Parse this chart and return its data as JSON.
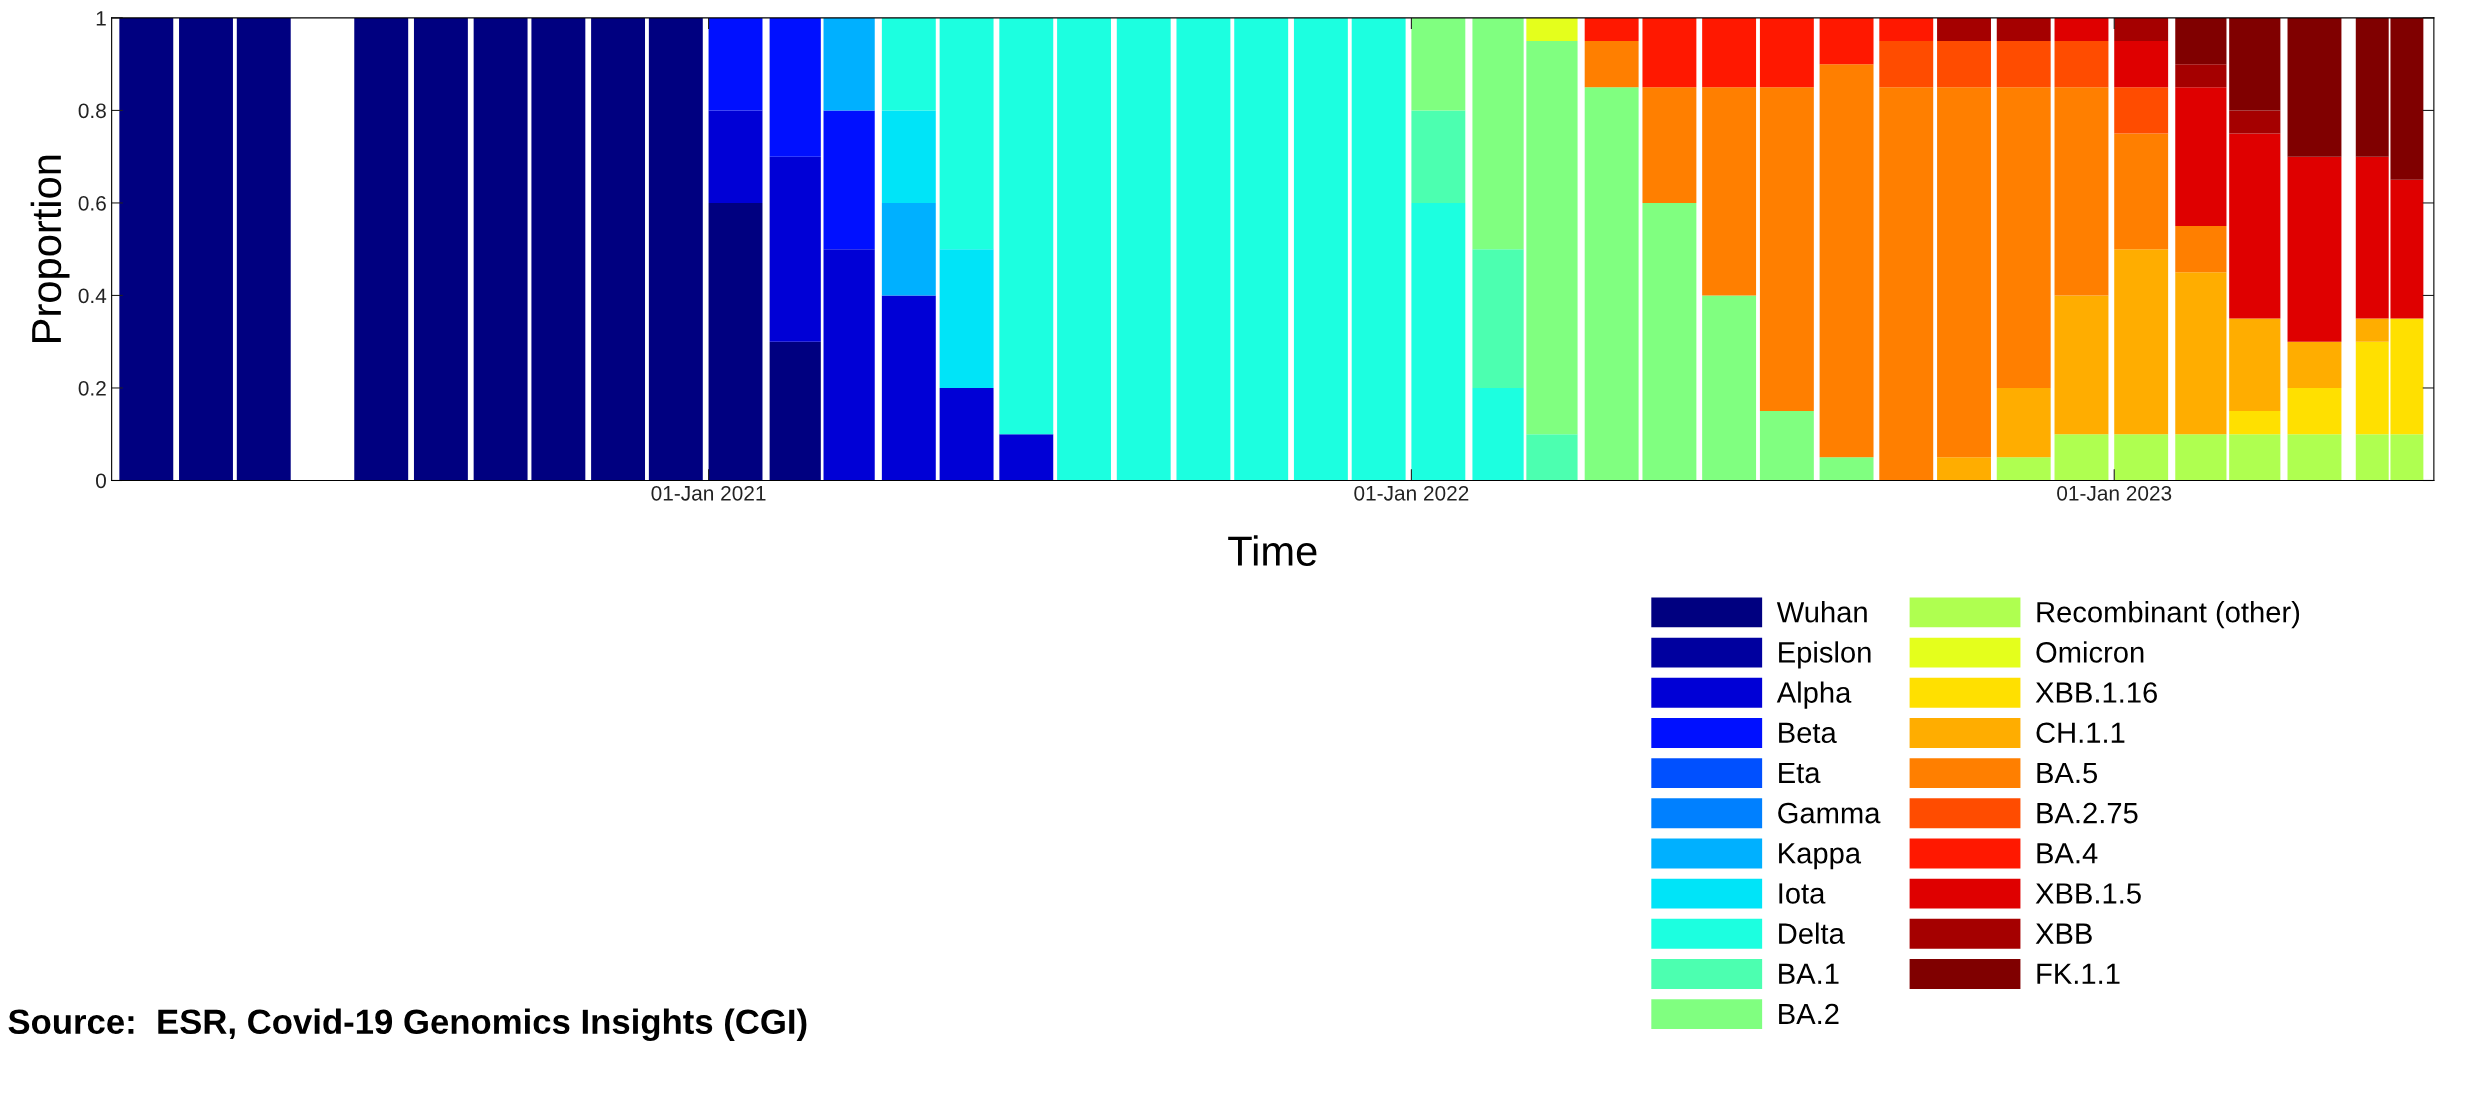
{
  "chart_data": {
    "type": "bar",
    "stacked": true,
    "xlabel": "Time",
    "ylabel": "Proportion",
    "x": [
      "2020-03-15",
      "2020-04-15",
      "2020-05-15",
      "2020-06-15",
      "2020-07-15",
      "2020-08-15",
      "2020-09-15",
      "2020-10-15",
      "2020-11-15",
      "2020-12-15",
      "2021-01-15",
      "2021-02-15",
      "2021-03-15",
      "2021-04-15",
      "2021-05-15",
      "2021-06-15",
      "2021-07-15",
      "2021-08-15",
      "2021-09-15",
      "2021-10-15",
      "2021-11-15",
      "2021-12-15",
      "2022-01-15",
      "2022-02-15",
      "2022-03-15",
      "2022-04-15",
      "2022-05-15",
      "2022-06-15",
      "2022-07-15",
      "2022-08-15",
      "2022-09-15",
      "2022-10-15",
      "2022-11-15",
      "2022-12-15",
      "2023-01-15",
      "2023-02-15",
      "2023-03-15",
      "2023-04-15",
      "2023-05-15",
      "2023-06-02"
    ],
    "xlim": [
      "2020-02-26",
      "2023-06-16"
    ],
    "xticks": [
      {
        "value": "2021-01-01",
        "label": "01-Jan 2021"
      },
      {
        "value": "2022-01-01",
        "label": "01-Jan 2022"
      },
      {
        "value": "2023-01-01",
        "label": "01-Jan 2023"
      }
    ],
    "ylim": [
      0,
      1
    ],
    "yticks": [
      0,
      0.2,
      0.4,
      0.6,
      0.8,
      1
    ],
    "grid": false,
    "legend": "bottom right",
    "series": [
      {
        "name": "Wuhan",
        "color": "#000080",
        "values": [
          1,
          1,
          1,
          null,
          1,
          1,
          1,
          1,
          1,
          1,
          0.6,
          0.3,
          0,
          0,
          0,
          0,
          0,
          0,
          0,
          0,
          0,
          0,
          0,
          0,
          0,
          0,
          0,
          0,
          0,
          0,
          0,
          0,
          0,
          0,
          0,
          0,
          0,
          0,
          0,
          0
        ]
      },
      {
        "name": "Epislon",
        "color": "#00009f",
        "values": [
          0,
          0,
          0,
          null,
          0,
          0,
          0,
          0,
          0,
          0,
          0,
          0,
          0,
          0,
          0,
          0,
          0,
          0,
          0,
          0,
          0,
          0,
          0,
          0,
          0,
          0,
          0,
          0,
          0,
          0,
          0,
          0,
          0,
          0,
          0,
          0,
          0,
          0,
          0,
          0
        ]
      },
      {
        "name": "Alpha",
        "color": "#0000d6",
        "values": [
          0,
          0,
          0,
          null,
          0,
          0,
          0,
          0,
          0,
          0,
          0.2,
          0.4,
          0.5,
          0.4,
          0.2,
          0.1,
          0,
          0,
          0,
          0,
          0,
          0,
          0,
          0,
          0,
          0,
          0,
          0,
          0,
          0,
          0,
          0,
          0,
          0,
          0,
          0,
          0,
          0,
          0,
          0
        ]
      },
      {
        "name": "Beta",
        "color": "#0010ff",
        "values": [
          0,
          0,
          0,
          null,
          0,
          0,
          0,
          0,
          0,
          0,
          0.2,
          0.3,
          0.3,
          0,
          0,
          0,
          0,
          0,
          0,
          0,
          0,
          0,
          0,
          0,
          0,
          0,
          0,
          0,
          0,
          0,
          0,
          0,
          0,
          0,
          0,
          0,
          0,
          0,
          0,
          0
        ]
      },
      {
        "name": "Eta",
        "color": "#0050ff",
        "values": [
          0,
          0,
          0,
          null,
          0,
          0,
          0,
          0,
          0,
          0,
          0,
          0,
          0,
          0,
          0,
          0,
          0,
          0,
          0,
          0,
          0,
          0,
          0,
          0,
          0,
          0,
          0,
          0,
          0,
          0,
          0,
          0,
          0,
          0,
          0,
          0,
          0,
          0,
          0,
          0
        ]
      },
      {
        "name": "Gamma",
        "color": "#0080ff",
        "values": [
          0,
          0,
          0,
          null,
          0,
          0,
          0,
          0,
          0,
          0,
          0,
          0,
          0,
          0,
          0,
          0,
          0,
          0,
          0,
          0,
          0,
          0,
          0,
          0,
          0,
          0,
          0,
          0,
          0,
          0,
          0,
          0,
          0,
          0,
          0,
          0,
          0,
          0,
          0,
          0
        ]
      },
      {
        "name": "Kappa",
        "color": "#00b0ff",
        "values": [
          0,
          0,
          0,
          null,
          0,
          0,
          0,
          0,
          0,
          0,
          0,
          0,
          0.2,
          0.2,
          0,
          0,
          0,
          0,
          0,
          0,
          0,
          0,
          0,
          0,
          0,
          0,
          0,
          0,
          0,
          0,
          0,
          0,
          0,
          0,
          0,
          0,
          0,
          0,
          0,
          0
        ]
      },
      {
        "name": "Iota",
        "color": "#00e4f8",
        "values": [
          0,
          0,
          0,
          null,
          0,
          0,
          0,
          0,
          0,
          0,
          0,
          0,
          0,
          0.2,
          0.3,
          0,
          0,
          0,
          0,
          0,
          0,
          0,
          0,
          0,
          0,
          0,
          0,
          0,
          0,
          0,
          0,
          0,
          0,
          0,
          0,
          0,
          0,
          0,
          0,
          0
        ]
      },
      {
        "name": "Delta",
        "color": "#1cffe0",
        "values": [
          0,
          0,
          0,
          null,
          0,
          0,
          0,
          0,
          0,
          0,
          0,
          0,
          0,
          0.2,
          0.5,
          0.9,
          1,
          1,
          1,
          1,
          1,
          1,
          0.6,
          0.2,
          0,
          0,
          0,
          0,
          0,
          0,
          0,
          0,
          0,
          0,
          0,
          0,
          0,
          0,
          0,
          0
        ]
      },
      {
        "name": "BA.1",
        "color": "#4cffb0",
        "values": [
          0,
          0,
          0,
          null,
          0,
          0,
          0,
          0,
          0,
          0,
          0,
          0,
          0,
          0,
          0,
          0,
          0,
          0,
          0,
          0,
          0,
          0,
          0.2,
          0.3,
          0.1,
          0,
          0,
          0,
          0,
          0,
          0,
          0,
          0,
          0,
          0,
          0,
          0,
          0,
          0,
          0
        ]
      },
      {
        "name": "BA.2",
        "color": "#80ff80",
        "values": [
          0,
          0,
          0,
          null,
          0,
          0,
          0,
          0,
          0,
          0,
          0,
          0,
          0,
          0,
          0,
          0,
          0,
          0,
          0,
          0,
          0,
          0,
          0.2,
          0.5,
          0.85,
          0.85,
          0.6,
          0.4,
          0.15,
          0.05,
          0,
          0,
          0,
          0,
          0,
          0,
          0,
          0,
          0,
          0
        ]
      },
      {
        "name": "Recombinant (other)",
        "color": "#afff50",
        "values": [
          0,
          0,
          0,
          null,
          0,
          0,
          0,
          0,
          0,
          0,
          0,
          0,
          0,
          0,
          0,
          0,
          0,
          0,
          0,
          0,
          0,
          0,
          0,
          0,
          0,
          0,
          0,
          0,
          0,
          0,
          0,
          0,
          0.05,
          0.1,
          0.1,
          0.1,
          0.1,
          0.1,
          0.1,
          0.1
        ]
      },
      {
        "name": "Omicron",
        "color": "#e4ff1c",
        "values": [
          0,
          0,
          0,
          null,
          0,
          0,
          0,
          0,
          0,
          0,
          0,
          0,
          0,
          0,
          0,
          0,
          0,
          0,
          0,
          0,
          0,
          0,
          0,
          0,
          0.05,
          0,
          0,
          0,
          0,
          0,
          0,
          0,
          0,
          0,
          0,
          0,
          0,
          0,
          0,
          0
        ]
      },
      {
        "name": "XBB.1.16",
        "color": "#ffe000",
        "values": [
          0,
          0,
          0,
          null,
          0,
          0,
          0,
          0,
          0,
          0,
          0,
          0,
          0,
          0,
          0,
          0,
          0,
          0,
          0,
          0,
          0,
          0,
          0,
          0,
          0,
          0,
          0,
          0,
          0,
          0,
          0,
          0,
          0,
          0,
          0,
          0,
          0.05,
          0.1,
          0.2,
          0.25
        ]
      },
      {
        "name": "CH.1.1",
        "color": "#ffad00",
        "values": [
          0,
          0,
          0,
          null,
          0,
          0,
          0,
          0,
          0,
          0,
          0,
          0,
          0,
          0,
          0,
          0,
          0,
          0,
          0,
          0,
          0,
          0,
          0,
          0,
          0,
          0,
          0,
          0,
          0,
          0,
          0,
          0.05,
          0.15,
          0.3,
          0.4,
          0.35,
          0.2,
          0.1,
          0.05,
          0
        ]
      },
      {
        "name": "BA.5",
        "color": "#ff7f00",
        "values": [
          0,
          0,
          0,
          null,
          0,
          0,
          0,
          0,
          0,
          0,
          0,
          0,
          0,
          0,
          0,
          0,
          0,
          0,
          0,
          0,
          0,
          0,
          0,
          0,
          0,
          0.1,
          0.25,
          0.45,
          0.7,
          0.85,
          0.85,
          0.8,
          0.65,
          0.45,
          0.25,
          0.1,
          0,
          0,
          0,
          0
        ]
      },
      {
        "name": "BA.2.75",
        "color": "#ff4c00",
        "values": [
          0,
          0,
          0,
          null,
          0,
          0,
          0,
          0,
          0,
          0,
          0,
          0,
          0,
          0,
          0,
          0,
          0,
          0,
          0,
          0,
          0,
          0,
          0,
          0,
          0,
          0,
          0,
          0,
          0,
          0,
          0.1,
          0.1,
          0.1,
          0.1,
          0.1,
          0,
          0,
          0,
          0,
          0
        ]
      },
      {
        "name": "BA.4",
        "color": "#ff1800",
        "values": [
          0,
          0,
          0,
          null,
          0,
          0,
          0,
          0,
          0,
          0,
          0,
          0,
          0,
          0,
          0,
          0,
          0,
          0,
          0,
          0,
          0,
          0,
          0,
          0,
          0,
          0.05,
          0.15,
          0.15,
          0.15,
          0.1,
          0.05,
          0,
          0,
          0,
          0,
          0,
          0,
          0,
          0,
          0
        ]
      },
      {
        "name": "XBB.1.5",
        "color": "#df0000",
        "values": [
          0,
          0,
          0,
          null,
          0,
          0,
          0,
          0,
          0,
          0,
          0,
          0,
          0,
          0,
          0,
          0,
          0,
          0,
          0,
          0,
          0,
          0,
          0,
          0,
          0,
          0,
          0,
          0,
          0,
          0,
          0,
          0,
          0,
          0.05,
          0.1,
          0.3,
          0.4,
          0.4,
          0.35,
          0.3
        ]
      },
      {
        "name": "XBB",
        "color": "#a50000",
        "values": [
          0,
          0,
          0,
          null,
          0,
          0,
          0,
          0,
          0,
          0,
          0,
          0,
          0,
          0,
          0,
          0,
          0,
          0,
          0,
          0,
          0,
          0,
          0,
          0,
          0,
          0,
          0,
          0,
          0,
          0,
          0,
          0.05,
          0.05,
          0,
          0.05,
          0.05,
          0.05,
          0,
          0,
          0
        ]
      },
      {
        "name": "FK.1.1",
        "color": "#800000",
        "values": [
          0,
          0,
          0,
          null,
          0,
          0,
          0,
          0,
          0,
          0,
          0,
          0,
          0,
          0,
          0,
          0,
          0,
          0,
          0,
          0,
          0,
          0,
          0,
          0,
          0,
          0,
          0,
          0,
          0,
          0,
          0,
          0,
          0,
          0,
          0,
          0.1,
          0.2,
          0.3,
          0.3,
          0.35
        ]
      }
    ],
    "annotations": [
      "Source:  ESR, Covid-19 Genomics Insights (CGI)"
    ]
  }
}
